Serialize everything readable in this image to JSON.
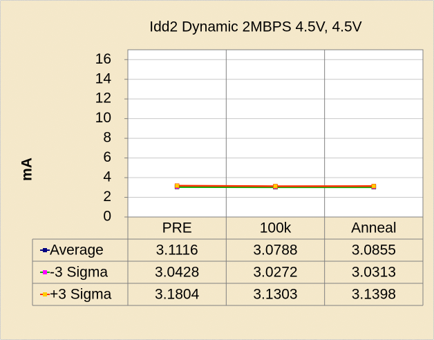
{
  "chart_data": {
    "type": "line",
    "title": "Idd2 Dynamic 2MBPS 4.5V, 4.5V",
    "y_label": "mA",
    "categories": [
      "PRE",
      "100k",
      "Anneal"
    ],
    "series": [
      {
        "name": "Average",
        "color": "#000080",
        "marker_color": "#000080",
        "values": [
          3.1116,
          3.0788,
          3.0855
        ]
      },
      {
        "name": "-3 Sigma",
        "color": "#00b000",
        "marker_color": "#ff00ff",
        "values": [
          3.0428,
          3.0272,
          3.0313
        ]
      },
      {
        "name": "+3 Sigma",
        "color": "#ff3300",
        "marker_color": "#ffcc00",
        "values": [
          3.1804,
          3.1303,
          3.1398
        ]
      }
    ],
    "ylim": [
      0,
      17
    ],
    "yticks": [
      0,
      2,
      4,
      6,
      8,
      10,
      12,
      14,
      16
    ],
    "grid": true,
    "data_table": true
  }
}
